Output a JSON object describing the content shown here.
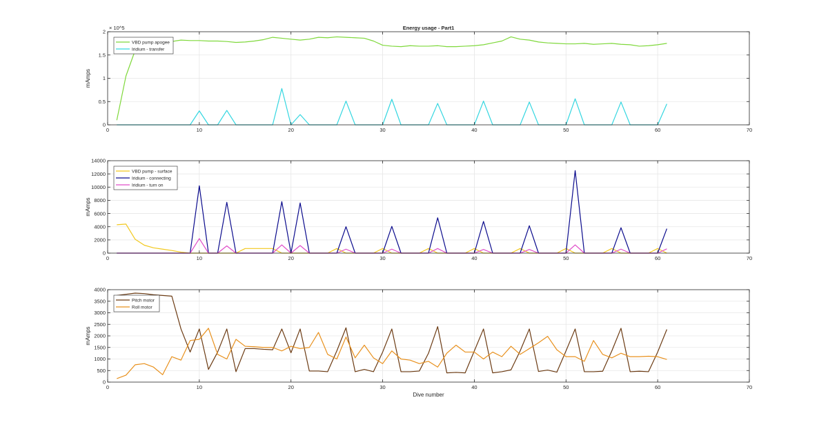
{
  "chart_data": [
    {
      "type": "line",
      "title": "Energy usage - Part1",
      "ylabel": "mAmps",
      "xlabel": "",
      "exponent_label": "× 10^5",
      "xlim": [
        0,
        70
      ],
      "ylim": [
        0,
        2
      ],
      "x_ticks": [
        0,
        10,
        20,
        30,
        40,
        50,
        60,
        70
      ],
      "x_tick_labels": [
        "0",
        "10",
        "20",
        "30",
        "40",
        "50",
        "60",
        "70"
      ],
      "y_ticks": [
        0,
        0.5,
        1,
        1.5,
        2
      ],
      "y_tick_labels": [
        "0",
        "0.5",
        "1",
        "1.5",
        "2"
      ],
      "grid": true,
      "legend_position": "top-left",
      "series": [
        {
          "name": "VBD pump apogee",
          "color": "#7ed83a",
          "x": [
            1,
            2,
            3,
            4,
            5,
            6,
            7,
            8,
            9,
            10,
            11,
            12,
            13,
            14,
            15,
            16,
            17,
            18,
            19,
            20,
            21,
            22,
            23,
            24,
            25,
            26,
            27,
            28,
            29,
            30,
            31,
            32,
            33,
            34,
            35,
            36,
            37,
            38,
            39,
            40,
            41,
            42,
            43,
            44,
            45,
            46,
            47,
            48,
            49,
            50,
            51,
            52,
            53,
            54,
            55,
            56,
            57,
            58,
            59,
            60,
            61
          ],
          "values": [
            0.1,
            1.05,
            1.6,
            1.78,
            1.8,
            1.8,
            1.79,
            1.82,
            1.81,
            1.81,
            1.8,
            1.8,
            1.79,
            1.77,
            1.78,
            1.8,
            1.83,
            1.88,
            1.86,
            1.84,
            1.82,
            1.84,
            1.88,
            1.87,
            1.89,
            1.88,
            1.87,
            1.86,
            1.8,
            1.71,
            1.69,
            1.68,
            1.7,
            1.69,
            1.69,
            1.7,
            1.68,
            1.68,
            1.69,
            1.7,
            1.72,
            1.76,
            1.8,
            1.89,
            1.84,
            1.82,
            1.78,
            1.76,
            1.75,
            1.74,
            1.74,
            1.75,
            1.73,
            1.74,
            1.75,
            1.73,
            1.72,
            1.69,
            1.7,
            1.72,
            1.75
          ]
        },
        {
          "name": "Iridium - transfer",
          "color": "#33d6e0",
          "x": [
            1,
            9,
            10,
            11,
            12,
            13,
            14,
            18,
            19,
            20,
            21,
            22,
            25,
            26,
            27,
            30,
            31,
            32,
            35,
            36,
            37,
            40,
            41,
            42,
            45,
            46,
            47,
            50,
            51,
            52,
            55,
            56,
            57,
            60,
            61
          ],
          "values": [
            0,
            0,
            0.3,
            0,
            0,
            0.31,
            0,
            0,
            0.78,
            0,
            0.22,
            0,
            0,
            0.51,
            0,
            0,
            0.55,
            0,
            0,
            0.46,
            0,
            0,
            0.51,
            0,
            0,
            0.49,
            0,
            0,
            0.56,
            0,
            0,
            0.49,
            0,
            0,
            0.45
          ]
        }
      ]
    },
    {
      "type": "line",
      "title": "",
      "ylabel": "mAmps",
      "xlabel": "",
      "xlim": [
        0,
        70
      ],
      "ylim": [
        0,
        14000
      ],
      "x_ticks": [
        0,
        10,
        20,
        30,
        40,
        50,
        60,
        70
      ],
      "x_tick_labels": [
        "0",
        "10",
        "20",
        "30",
        "40",
        "50",
        "60",
        "70"
      ],
      "y_ticks": [
        0,
        2000,
        4000,
        6000,
        8000,
        10000,
        12000,
        14000
      ],
      "y_tick_labels": [
        "0",
        "2000",
        "4000",
        "6000",
        "8000",
        "10000",
        "12000",
        "14000"
      ],
      "grid": true,
      "legend_position": "top-left",
      "series": [
        {
          "name": "VBD pump - surface",
          "color": "#f2c81c",
          "x": [
            1,
            2,
            3,
            4,
            5,
            6,
            7,
            8,
            9,
            10,
            11,
            12,
            13,
            14,
            15,
            16,
            17,
            18,
            19,
            20,
            21,
            22,
            23,
            24,
            25,
            26,
            27,
            28,
            29,
            30,
            31,
            32,
            33,
            34,
            35,
            36,
            37,
            38,
            39,
            40,
            41,
            42,
            43,
            44,
            45,
            46,
            47,
            48,
            49,
            50,
            51,
            52,
            53,
            54,
            55,
            56,
            57,
            58,
            59,
            60,
            61
          ],
          "values": [
            4300,
            4400,
            2100,
            1200,
            800,
            600,
            400,
            150,
            0,
            0,
            0,
            0,
            0,
            0,
            700,
            700,
            700,
            700,
            0,
            0,
            0,
            0,
            0,
            0,
            700,
            0,
            0,
            0,
            0,
            700,
            0,
            0,
            0,
            0,
            700,
            0,
            0,
            0,
            0,
            700,
            0,
            0,
            0,
            0,
            700,
            0,
            0,
            0,
            0,
            700,
            0,
            0,
            0,
            0,
            700,
            0,
            0,
            0,
            0,
            700,
            0
          ]
        },
        {
          "name": "Iridium - connecting",
          "color": "#0a0a8c",
          "x": [
            1,
            9,
            10,
            11,
            12,
            13,
            14,
            18,
            19,
            20,
            21,
            22,
            25,
            26,
            27,
            30,
            31,
            32,
            35,
            36,
            37,
            40,
            41,
            42,
            45,
            46,
            47,
            50,
            51,
            52,
            55,
            56,
            57,
            60,
            61
          ],
          "values": [
            0,
            0,
            10200,
            0,
            0,
            7700,
            0,
            0,
            7800,
            0,
            7600,
            0,
            0,
            4000,
            0,
            0,
            4050,
            0,
            0,
            5350,
            0,
            0,
            4800,
            0,
            0,
            4150,
            0,
            0,
            12500,
            0,
            0,
            3850,
            0,
            0,
            3700
          ]
        },
        {
          "name": "Iridium - turn on",
          "color": "#e04cc8",
          "x": [
            1,
            9,
            10,
            11,
            12,
            13,
            14,
            18,
            19,
            20,
            21,
            22,
            25,
            26,
            27,
            30,
            31,
            32,
            35,
            36,
            37,
            40,
            41,
            42,
            45,
            46,
            47,
            50,
            51,
            52,
            55,
            56,
            57,
            60,
            61
          ],
          "values": [
            0,
            0,
            2200,
            0,
            0,
            1100,
            0,
            0,
            1250,
            0,
            1150,
            0,
            0,
            600,
            0,
            0,
            600,
            0,
            0,
            700,
            0,
            0,
            550,
            0,
            0,
            550,
            0,
            0,
            1250,
            0,
            0,
            600,
            0,
            0,
            650
          ]
        }
      ]
    },
    {
      "type": "line",
      "title": "",
      "ylabel": "mAmps",
      "xlabel": "Dive number",
      "xlim": [
        0,
        70
      ],
      "ylim": [
        0,
        4000
      ],
      "x_ticks": [
        0,
        10,
        20,
        30,
        40,
        50,
        60,
        70
      ],
      "x_tick_labels": [
        "0",
        "10",
        "20",
        "30",
        "40",
        "50",
        "60",
        "70"
      ],
      "y_ticks": [
        0,
        500,
        1000,
        1500,
        2000,
        2500,
        3000,
        3500,
        4000
      ],
      "y_tick_labels": [
        "0",
        "500",
        "1000",
        "1500",
        "2000",
        "2500",
        "3000",
        "3500",
        "4000"
      ],
      "grid": true,
      "legend_position": "top-left",
      "series": [
        {
          "name": "Pitch motor",
          "color": "#6b3a12",
          "x": [
            1,
            2,
            3,
            4,
            5,
            6,
            7,
            8,
            9,
            10,
            11,
            12,
            13,
            14,
            15,
            16,
            17,
            18,
            19,
            20,
            21,
            22,
            23,
            24,
            25,
            26,
            27,
            28,
            29,
            30,
            31,
            32,
            33,
            34,
            35,
            36,
            37,
            38,
            39,
            40,
            41,
            42,
            43,
            44,
            45,
            46,
            47,
            48,
            49,
            50,
            51,
            52,
            53,
            54,
            55,
            56,
            57,
            58,
            59,
            60,
            61
          ],
          "values": [
            3750,
            3800,
            3850,
            3830,
            3780,
            3750,
            3720,
            2300,
            1300,
            2300,
            550,
            1300,
            2300,
            450,
            1450,
            1450,
            1420,
            1400,
            2300,
            1270,
            2300,
            480,
            480,
            450,
            1350,
            2350,
            450,
            550,
            450,
            1300,
            2300,
            450,
            450,
            480,
            1250,
            2400,
            400,
            420,
            400,
            1350,
            2300,
            400,
            450,
            530,
            1350,
            2300,
            460,
            520,
            430,
            1350,
            2300,
            450,
            450,
            470,
            1350,
            2330,
            450,
            470,
            450,
            1300,
            2280
          ]
        },
        {
          "name": "Roll motor",
          "color": "#e8901c",
          "x": [
            1,
            2,
            3,
            4,
            5,
            6,
            7,
            8,
            9,
            10,
            11,
            12,
            13,
            14,
            15,
            16,
            17,
            18,
            19,
            20,
            21,
            22,
            23,
            24,
            25,
            26,
            27,
            28,
            29,
            30,
            31,
            32,
            33,
            34,
            35,
            36,
            37,
            38,
            39,
            40,
            41,
            42,
            43,
            44,
            45,
            46,
            47,
            48,
            49,
            50,
            51,
            52,
            53,
            54,
            55,
            56,
            57,
            58,
            59,
            60,
            61
          ],
          "values": [
            150,
            300,
            750,
            800,
            650,
            320,
            1100,
            950,
            1800,
            1850,
            2330,
            1200,
            1000,
            1850,
            1550,
            1530,
            1500,
            1500,
            1350,
            1550,
            1450,
            1500,
            2150,
            1200,
            1000,
            1950,
            1050,
            1600,
            1050,
            800,
            1350,
            1000,
            950,
            800,
            900,
            650,
            1250,
            1600,
            1300,
            1300,
            1000,
            1300,
            1100,
            1550,
            1200,
            1450,
            1700,
            1980,
            1400,
            1100,
            1100,
            900,
            1800,
            1200,
            1050,
            1250,
            1100,
            1100,
            1120,
            1100,
            980
          ]
        }
      ]
    }
  ]
}
